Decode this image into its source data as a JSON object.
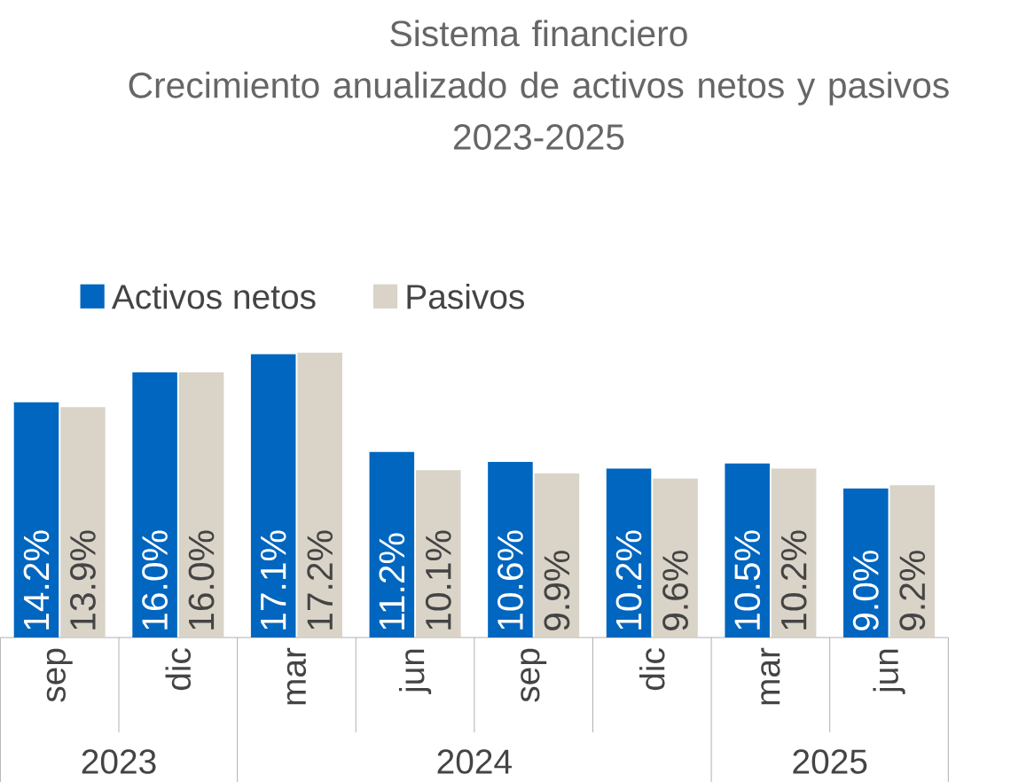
{
  "chart_data": {
    "type": "bar",
    "title": "Sistema financiero",
    "subtitle": "Crecimiento anualizado de activos netos y pasivos",
    "annotations": [
      "2023-2025",
      "2023",
      "2024",
      "2025"
    ],
    "categories": [
      "sep",
      "dic",
      "mar",
      "jun",
      "sep",
      "dic",
      "mar",
      "jun"
    ],
    "series": [
      {
        "name": "Activos netos",
        "color": "#0066bf",
        "values": [
          14.2,
          16.0,
          17.1,
          11.2,
          10.6,
          10.2,
          10.5,
          9.0
        ],
        "value_labels": [
          "14.2%",
          "16.0%",
          "17.1%",
          "11.2%",
          "10.6%",
          "10.2%",
          "10.5%",
          "9.0%"
        ]
      },
      {
        "name": "Pasivos",
        "color": "#d9d3c8",
        "values": [
          13.9,
          16.0,
          17.2,
          10.1,
          9.9,
          9.6,
          10.2,
          9.2
        ],
        "value_labels": [
          "13.9%",
          "16.0%",
          "17.2%",
          "10.1%",
          "9.9%",
          "9.6%",
          "10.2%",
          "9.2%"
        ]
      }
    ],
    "legend": "top left"
  }
}
